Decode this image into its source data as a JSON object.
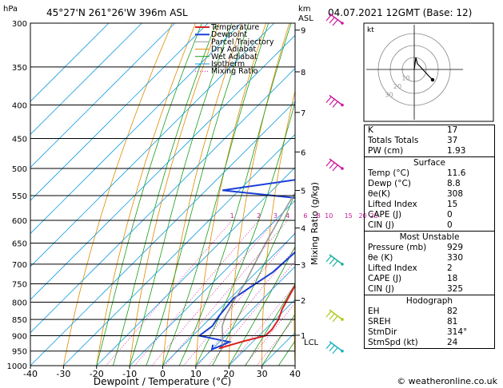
{
  "header": {
    "location": "45°27'N  261°26'W  396m  ASL",
    "datetime": "04.07.2021  12GMT  (Base: 12)",
    "p_unit": "hPa",
    "km_unit": "km",
    "asl_label": "ASL"
  },
  "axes": {
    "xlabel": "Dewpoint / Temperature (°C)",
    "ylabel": "Mixing Ratio (g/kg)",
    "x_ticks": [
      "-40",
      "-30",
      "-20",
      "-10",
      "0",
      "10",
      "20",
      "30",
      "40"
    ],
    "p_ticks": [
      "300",
      "350",
      "400",
      "450",
      "500",
      "550",
      "600",
      "650",
      "700",
      "750",
      "800",
      "850",
      "900",
      "950",
      "1000"
    ],
    "km_ticks": [
      "9",
      "8",
      "7",
      "6",
      "5",
      "4",
      "3",
      "2",
      "1"
    ],
    "lcl_label": "LCL",
    "mixing_labels": [
      "1",
      "2",
      "3",
      "4",
      "6",
      "8",
      "10",
      "15",
      "20",
      "25"
    ]
  },
  "legend": [
    "Temperature",
    "Dewpoint",
    "Parcel Trajectory",
    "Dry Adiabat",
    "Wet Adiabat",
    "Isotherm",
    "Mixing Ratio"
  ],
  "colors": {
    "temperature": "#dd2222",
    "dewpoint": "#1a3fd6",
    "parcel": "#999999",
    "dry_adiabat": "#e08a00",
    "wet_adiabat": "#1a9c1a",
    "isotherm": "#1aa0e0",
    "mixing_ratio": "#cc1a99",
    "wind": "#cc1aa0"
  },
  "chart_data": {
    "type": "line",
    "title": "",
    "xlabel": "Dewpoint / Temperature (°C)",
    "ylabel": "hPa",
    "xlim": [
      -40,
      40
    ],
    "ylim": [
      1000,
      300
    ],
    "series": [
      {
        "name": "Temperature",
        "points": [
          [
            11.6,
            929
          ],
          [
            12,
            940
          ],
          [
            17,
            918
          ],
          [
            22,
            900
          ],
          [
            22,
            880
          ],
          [
            21,
            850
          ],
          [
            19,
            820
          ],
          [
            17,
            780
          ],
          [
            14,
            720
          ],
          [
            10,
            680
          ],
          [
            6,
            620
          ],
          [
            5,
            580
          ],
          [
            5,
            550
          ],
          [
            2,
            520
          ],
          [
            -4,
            460
          ],
          [
            -8,
            420
          ],
          [
            -12,
            380
          ],
          [
            -16,
            340
          ],
          [
            -18,
            300
          ]
        ]
      },
      {
        "name": "Dewpoint",
        "points": [
          [
            8.8,
            929
          ],
          [
            10,
            945
          ],
          [
            13,
            920
          ],
          [
            2,
            900
          ],
          [
            3,
            870
          ],
          [
            2,
            840
          ],
          [
            1,
            790
          ],
          [
            5,
            720
          ],
          [
            6,
            650
          ],
          [
            5,
            600
          ],
          [
            -3,
            570
          ],
          [
            -10,
            555
          ],
          [
            -35,
            540
          ],
          [
            -6,
            510
          ],
          [
            -10,
            490
          ],
          [
            -9,
            470
          ],
          [
            -19,
            450
          ],
          [
            -6,
            440
          ],
          [
            -8,
            420
          ],
          [
            -12,
            400
          ],
          [
            -8,
            390
          ],
          [
            -15,
            360
          ],
          [
            -7,
            345
          ],
          [
            -20,
            320
          ],
          [
            -25,
            305
          ],
          [
            -22,
            300
          ]
        ]
      },
      {
        "name": "Parcel Trajectory",
        "points": [
          [
            11.6,
            929
          ],
          [
            9,
            900
          ],
          [
            6,
            870
          ],
          [
            4,
            840
          ],
          [
            2,
            800
          ],
          [
            0,
            750
          ],
          [
            -3,
            700
          ],
          [
            -6,
            650
          ],
          [
            -9,
            600
          ],
          [
            -12,
            550
          ],
          [
            -15,
            500
          ],
          [
            -19,
            450
          ],
          [
            -23,
            400
          ],
          [
            -28,
            350
          ],
          [
            -34,
            300
          ]
        ]
      }
    ]
  },
  "hodograph": {
    "unit": "kt",
    "ring_labels": [
      "10",
      "20",
      "30"
    ]
  },
  "indices": [
    {
      "label": "K",
      "value": "17"
    },
    {
      "label": "Totals Totals",
      "value": "37"
    },
    {
      "label": "PW (cm)",
      "value": "1.93"
    }
  ],
  "surface": {
    "title": "Surface",
    "rows": [
      {
        "label": "Temp (°C)",
        "value": "11.6"
      },
      {
        "label": "Dewp (°C)",
        "value": "8.8"
      },
      {
        "label": "θe(K)",
        "value": "308"
      },
      {
        "label": "Lifted Index",
        "value": "15"
      },
      {
        "label": "CAPE (J)",
        "value": "0"
      },
      {
        "label": "CIN (J)",
        "value": "0"
      }
    ]
  },
  "unstable": {
    "title": "Most Unstable",
    "rows": [
      {
        "label": "Pressure (mb)",
        "value": "929"
      },
      {
        "label": "θe (K)",
        "value": "330"
      },
      {
        "label": "Lifted Index",
        "value": "2"
      },
      {
        "label": "CAPE (J)",
        "value": "18"
      },
      {
        "label": "CIN (J)",
        "value": "325"
      }
    ]
  },
  "hodo_table": {
    "title": "Hodograph",
    "rows": [
      {
        "label": "EH",
        "value": "82"
      },
      {
        "label": "SREH",
        "value": "81"
      },
      {
        "label": "StmDir",
        "value": "314°"
      },
      {
        "label": "StmSpd (kt)",
        "value": "24"
      }
    ]
  },
  "copyright": "© weatheronline.co.uk"
}
